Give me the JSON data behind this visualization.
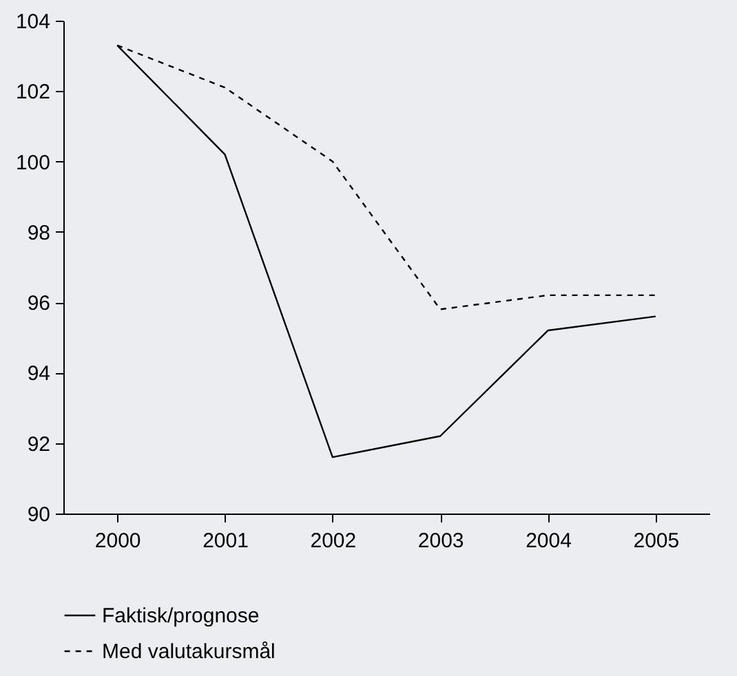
{
  "chart_data": {
    "type": "line",
    "categories": [
      "2000",
      "2001",
      "2002",
      "2003",
      "2004",
      "2005"
    ],
    "series": [
      {
        "name": "Faktisk/prognose",
        "color": "#000000",
        "line_style": "solid",
        "values": [
          103.3,
          100.2,
          91.6,
          92.2,
          95.2,
          95.6
        ]
      },
      {
        "name": "Med valutakursmål",
        "color": "#000000",
        "line_style": "dashed",
        "values": [
          103.3,
          102.1,
          100.0,
          95.8,
          96.2,
          96.2
        ]
      }
    ],
    "ylim": [
      90,
      104
    ],
    "yticks": [
      90,
      92,
      94,
      96,
      98,
      100,
      102,
      104
    ],
    "grid": false,
    "legend": "bottom left",
    "marker": "none"
  }
}
